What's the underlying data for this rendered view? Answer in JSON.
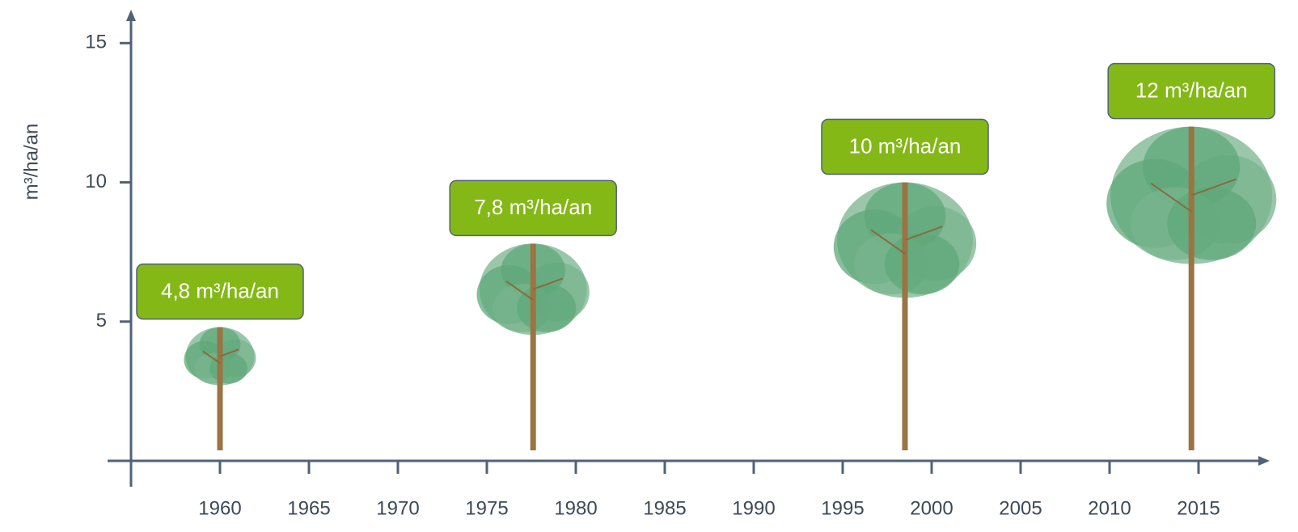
{
  "chart_data": {
    "type": "pictograph",
    "y_label": "m³/ha/an",
    "x": [
      1960,
      1977.6,
      1998.5,
      2014.6
    ],
    "values": [
      4.8,
      7.8,
      10,
      12
    ],
    "value_labels": [
      "4,8 m³/ha/an",
      "7,8 m³/ha/an",
      "10 m³/ha/an",
      "12 m³/ha/an"
    ],
    "color": "#84b817",
    "xlim": [
      1955,
      2019
    ],
    "ylim": [
      0,
      16.2
    ],
    "xticks": [
      1960,
      1965,
      1970,
      1975,
      1980,
      1985,
      1990,
      1995,
      2000,
      2005,
      2010,
      2015
    ],
    "yticks": [
      5,
      10,
      15
    ]
  }
}
